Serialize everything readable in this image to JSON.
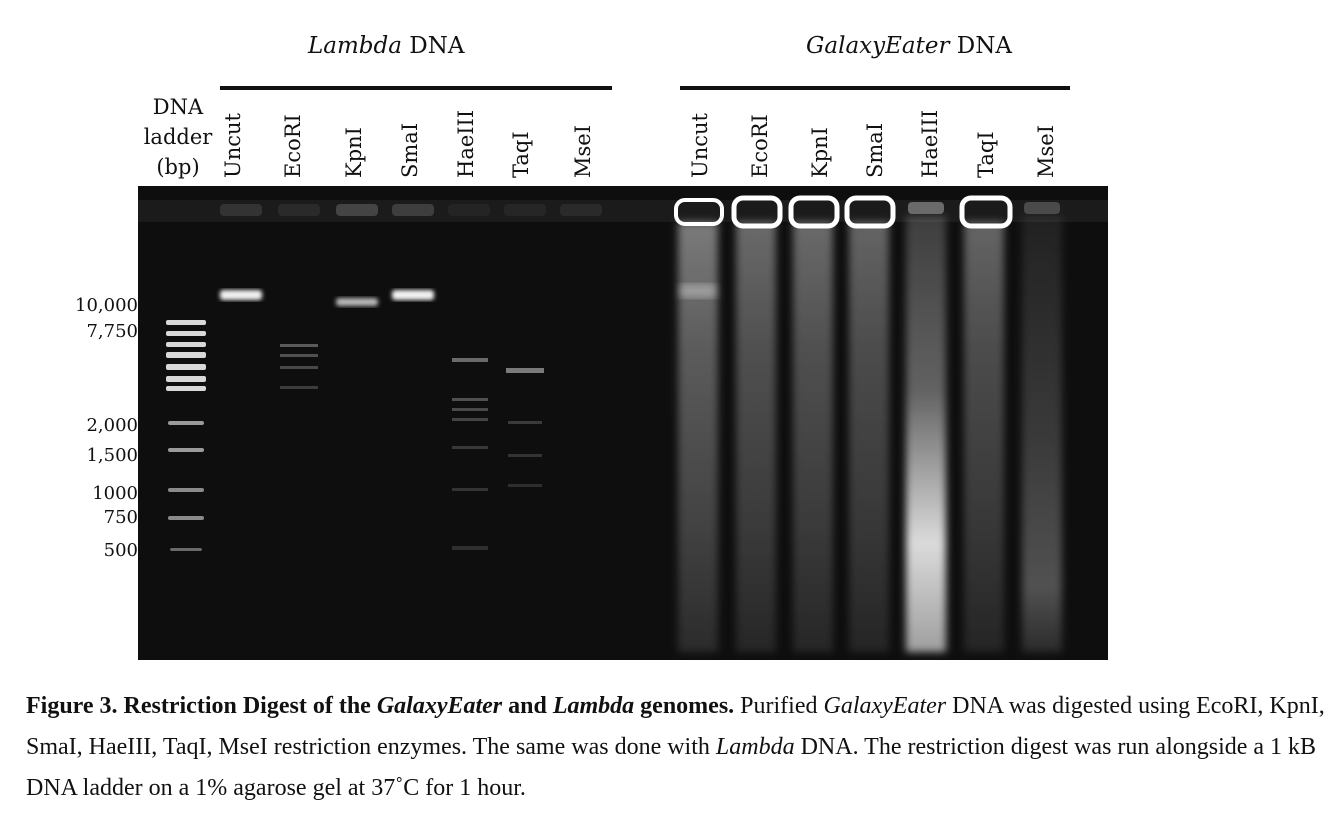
{
  "figure": {
    "groups": {
      "lambda": {
        "italic": "Lambda",
        "rest": " DNA"
      },
      "galaxy": {
        "italic": "GalaxyEater",
        "rest": " DNA"
      }
    },
    "ladder": {
      "line1": "DNA",
      "line2": "ladder",
      "line3": "(bp)",
      "marks": [
        "10,000",
        "7,750",
        "2,000",
        "1,500",
        "1000",
        "750",
        "500"
      ]
    },
    "lambda_lanes": [
      "Uncut",
      "EcoRI",
      "KpnI",
      "SmaI",
      "HaeIII",
      "TaqI",
      "MseI"
    ],
    "galaxy_lanes": [
      "Uncut",
      "EcoRI",
      "KpnI",
      "SmaI",
      "HaeIII",
      "TaqI",
      "MseI"
    ]
  },
  "caption": {
    "bold1": "Figure 3. Restriction Digest of the ",
    "bold_italic1": "GalaxyEater",
    "bold2": " and ",
    "bold_italic2": "Lambda",
    "bold3": " genomes.",
    "text1": " Purified ",
    "italic1": "GalaxyEater",
    "text2": " DNA was digested using EcoRI, KpnI, SmaI, HaeIII, TaqI, MseI restriction enzymes. The same was done with ",
    "italic2": "Lambda",
    "text3": " DNA. The restriction digest was run alongside a 1 kB DNA ladder on a 1% agarose gel at 37˚C for 1 hour."
  }
}
